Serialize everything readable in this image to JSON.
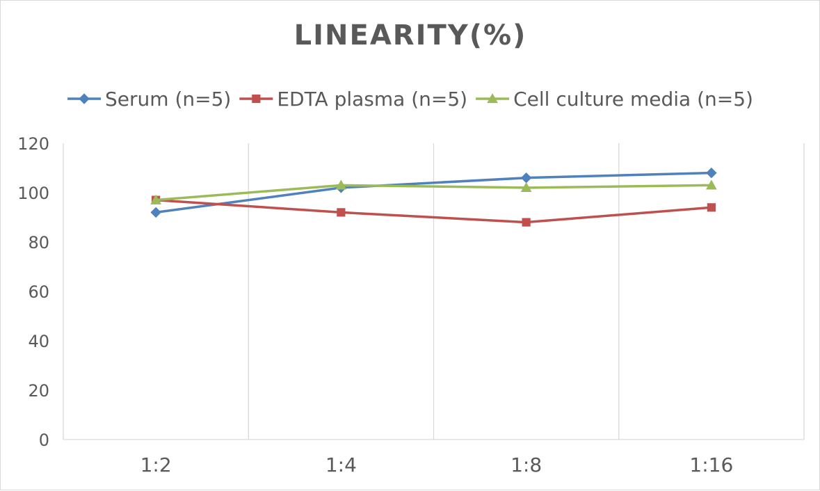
{
  "colors": {
    "serum": "#4f81bd",
    "edta": "#c0504d",
    "cell": "#9bbb59",
    "grid": "#d9d9d9",
    "text": "#595959"
  },
  "chart_data": {
    "type": "line",
    "title": "LINEARITY(%)",
    "xlabel": "",
    "ylabel": "",
    "categories": [
      "1:2",
      "1:4",
      "1:8",
      "1:16"
    ],
    "ylim": [
      0,
      120
    ],
    "yticks": [
      0,
      20,
      40,
      60,
      80,
      100,
      120
    ],
    "grid": "vertical",
    "legend": "top",
    "series": [
      {
        "name": "Serum (n=5)",
        "values": [
          92,
          102,
          106,
          108
        ],
        "color": "#4f81bd",
        "marker": "diamond"
      },
      {
        "name": "EDTA plasma (n=5)",
        "values": [
          97,
          92,
          88,
          94
        ],
        "color": "#c0504d",
        "marker": "square"
      },
      {
        "name": "Cell culture media (n=5)",
        "values": [
          97,
          103,
          102,
          103
        ],
        "color": "#9bbb59",
        "marker": "triangle"
      }
    ]
  }
}
